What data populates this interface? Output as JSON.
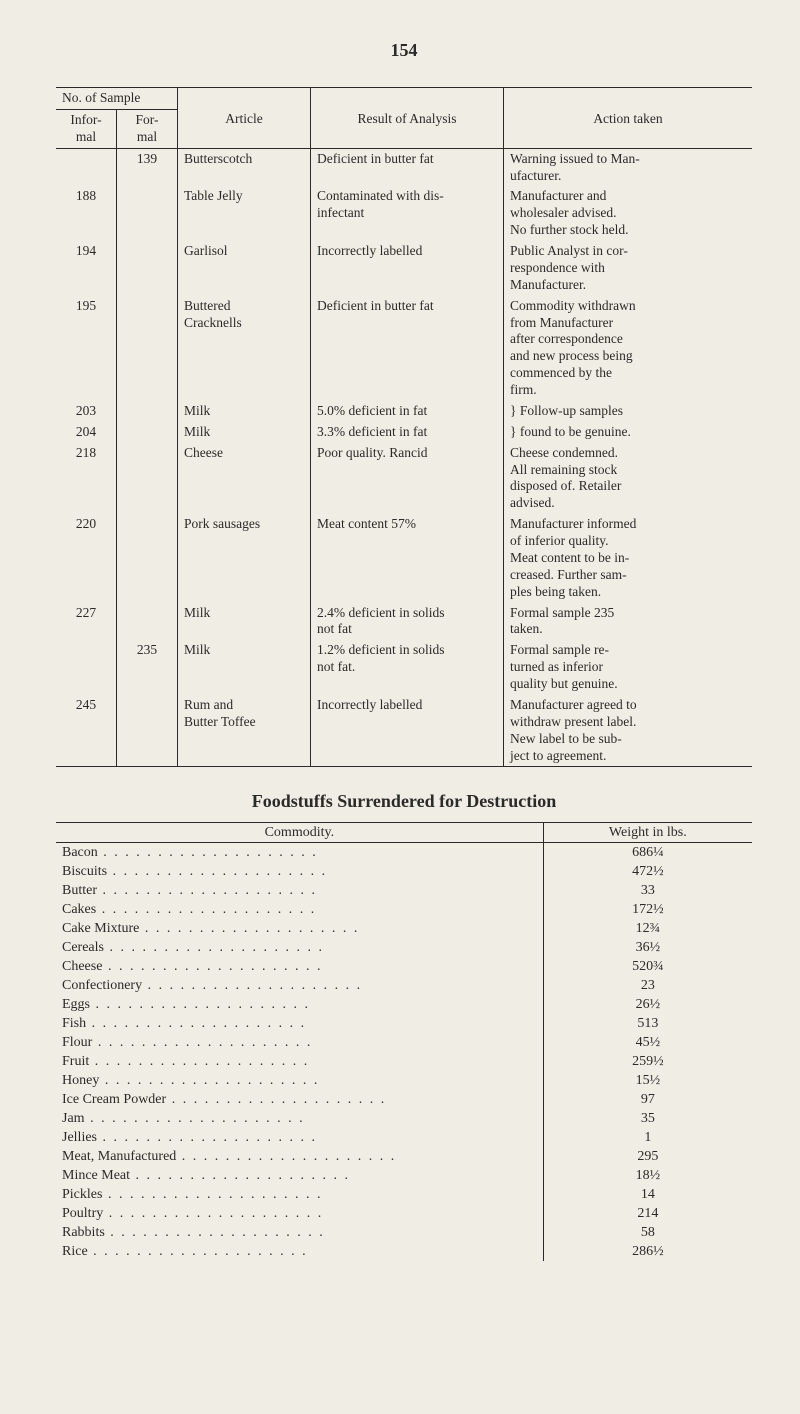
{
  "page_number": "154",
  "sample_table": {
    "group_header": "No. of Sample",
    "columns": {
      "informal": "Infor-\nmal",
      "formal": "For-\nmal",
      "article": "Article",
      "result": "Result of Analysis",
      "action": "Action taken"
    },
    "rows": [
      {
        "informal": "",
        "formal": "139",
        "article": "Butterscotch",
        "result": "Deficient in butter fat",
        "action": "Warning issued to Man-\nufacturer."
      },
      {
        "informal": "188",
        "formal": "",
        "article": "Table Jelly",
        "result": "Contaminated with dis-\ninfectant",
        "action": "Manufacturer and\nwholesaler advised.\nNo further stock held."
      },
      {
        "informal": "194",
        "formal": "",
        "article": "Garlisol",
        "result": "Incorrectly labelled",
        "action": "Public Analyst in cor-\nrespondence with\nManufacturer."
      },
      {
        "informal": "195",
        "formal": "",
        "article": "Buttered\nCracknells",
        "result": "Deficient in butter fat",
        "action": "Commodity withdrawn\nfrom Manufacturer\nafter correspondence\nand new process being\ncommenced by the\nfirm."
      },
      {
        "informal": "203",
        "formal": "",
        "article": "Milk",
        "result": "5.0% deficient in fat",
        "action": "} Follow-up samples"
      },
      {
        "informal": "204",
        "formal": "",
        "article": "Milk",
        "result": "3.3% deficient in fat",
        "action": "} found to be genuine."
      },
      {
        "informal": "218",
        "formal": "",
        "article": "Cheese",
        "result": "Poor quality.  Rancid",
        "action": "Cheese condemned.\nAll remaining stock\ndisposed of.  Retailer\nadvised."
      },
      {
        "informal": "220",
        "formal": "",
        "article": "Pork sausages",
        "result": "Meat content 57%",
        "action": "Manufacturer informed\nof inferior quality.\nMeat content to be in-\ncreased.  Further sam-\nples being taken."
      },
      {
        "informal": "227",
        "formal": "",
        "article": "Milk",
        "result": "2.4% deficient in solids\nnot fat",
        "action": "Formal sample 235\ntaken."
      },
      {
        "informal": "",
        "formal": "235",
        "article": "Milk",
        "result": "1.2% deficient in solids\nnot fat.",
        "action": "Formal sample re-\nturned as inferior\nquality but genuine."
      },
      {
        "informal": "245",
        "formal": "",
        "article": "Rum and\nButter Toffee",
        "result": "Incorrectly labelled",
        "action": "Manufacturer agreed to\nwithdraw present label.\nNew label to be sub-\nject to agreement."
      }
    ]
  },
  "surrender_title": "Foodstuffs Surrendered for Destruction",
  "surrender_table": {
    "columns": {
      "commodity": "Commodity.",
      "weight": "Weight in lbs."
    },
    "rows": [
      {
        "commodity": "Bacon",
        "weight": "686¼"
      },
      {
        "commodity": "Biscuits",
        "weight": "472½"
      },
      {
        "commodity": "Butter",
        "weight": "33"
      },
      {
        "commodity": "Cakes",
        "weight": "172½"
      },
      {
        "commodity": "Cake Mixture",
        "weight": "12¾"
      },
      {
        "commodity": "Cereals",
        "weight": "36½"
      },
      {
        "commodity": "Cheese",
        "weight": "520¾"
      },
      {
        "commodity": "Confectionery",
        "weight": "23"
      },
      {
        "commodity": "Eggs",
        "weight": "26½"
      },
      {
        "commodity": "Fish",
        "weight": "513"
      },
      {
        "commodity": "Flour",
        "weight": "45½"
      },
      {
        "commodity": "Fruit",
        "weight": "259½"
      },
      {
        "commodity": "Honey",
        "weight": "15½"
      },
      {
        "commodity": "Ice Cream Powder",
        "weight": "97"
      },
      {
        "commodity": "Jam",
        "weight": "35"
      },
      {
        "commodity": "Jellies",
        "weight": "1"
      },
      {
        "commodity": "Meat, Manufactured",
        "weight": "295"
      },
      {
        "commodity": "Mince Meat",
        "weight": "18½"
      },
      {
        "commodity": "Pickles",
        "weight": "14"
      },
      {
        "commodity": "Poultry",
        "weight": "214"
      },
      {
        "commodity": "Rabbits",
        "weight": "58"
      },
      {
        "commodity": "Rice",
        "weight": "286½"
      }
    ]
  },
  "style": {
    "background": "#f0ede4",
    "text_color": "#2a2a2a",
    "rule_color": "#2a2a2a",
    "font_family": "Times New Roman",
    "body_fontsize_pt": 10,
    "title_fontsize_pt": 14
  }
}
